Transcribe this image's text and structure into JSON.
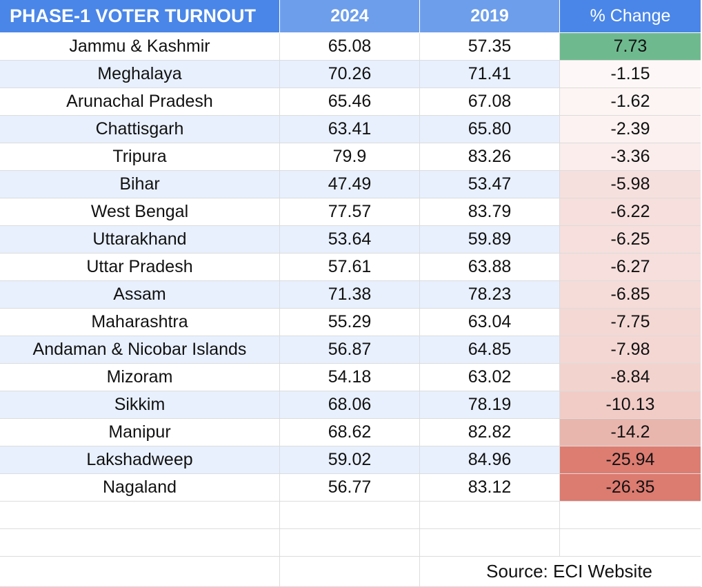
{
  "header": {
    "title": "PHASE-1 VOTER TURNOUT",
    "col_2024": "2024",
    "col_2019": "2019",
    "col_change": "% Change"
  },
  "rows": [
    {
      "state": "Jammu & Kashmir",
      "y2024": "65.08",
      "y2019": "57.35",
      "change": "7.73",
      "color": "#6fb98f"
    },
    {
      "state": "Meghalaya",
      "y2024": "70.26",
      "y2019": "71.41",
      "change": "-1.15",
      "color": "#fdf8f7"
    },
    {
      "state": "Arunachal Pradesh",
      "y2024": "65.46",
      "y2019": "67.08",
      "change": "-1.62",
      "color": "#fcf5f4"
    },
    {
      "state": "Chattisgarh",
      "y2024": "63.41",
      "y2019": "65.80",
      "change": "-2.39",
      "color": "#fbf2f1"
    },
    {
      "state": "Tripura",
      "y2024": "79.9",
      "y2019": "83.26",
      "change": "-3.36",
      "color": "#faedeb"
    },
    {
      "state": "Bihar",
      "y2024": "47.49",
      "y2019": "53.47",
      "change": "-5.98",
      "color": "#f6e0dd"
    },
    {
      "state": "West Bengal",
      "y2024": "77.57",
      "y2019": "83.79",
      "change": "-6.22",
      "color": "#f6dfdc"
    },
    {
      "state": "Uttarakhand",
      "y2024": "53.64",
      "y2019": "59.89",
      "change": "-6.25",
      "color": "#f6dfdc"
    },
    {
      "state": "Uttar Pradesh",
      "y2024": "57.61",
      "y2019": "63.88",
      "change": "-6.27",
      "color": "#f6dfdc"
    },
    {
      "state": "Assam",
      "y2024": "71.38",
      "y2019": "78.23",
      "change": "-6.85",
      "color": "#f5dcd8"
    },
    {
      "state": "Maharashtra",
      "y2024": "55.29",
      "y2019": "63.04",
      "change": "-7.75",
      "color": "#f4d8d4"
    },
    {
      "state": "Andaman & Nicobar Islands",
      "y2024": "56.87",
      "y2019": "64.85",
      "change": "-7.98",
      "color": "#f4d7d3"
    },
    {
      "state": "Mizoram",
      "y2024": "54.18",
      "y2019": "63.02",
      "change": "-8.84",
      "color": "#f3d3ce"
    },
    {
      "state": "Sikkim",
      "y2024": "68.06",
      "y2019": "78.19",
      "change": "-10.13",
      "color": "#f1ccc7"
    },
    {
      "state": "Manipur",
      "y2024": "68.62",
      "y2019": "82.82",
      "change": "-14.2",
      "color": "#e9b6ae"
    },
    {
      "state": "Lakshadweep",
      "y2024": "59.02",
      "y2019": "84.96",
      "change": "-25.94",
      "color": "#dd7d72"
    },
    {
      "state": "Nagaland",
      "y2024": "56.77",
      "y2019": "83.12",
      "change": "-26.35",
      "color": "#dc7b70"
    }
  ],
  "footer": {
    "source": "Source: ECI Website"
  }
}
